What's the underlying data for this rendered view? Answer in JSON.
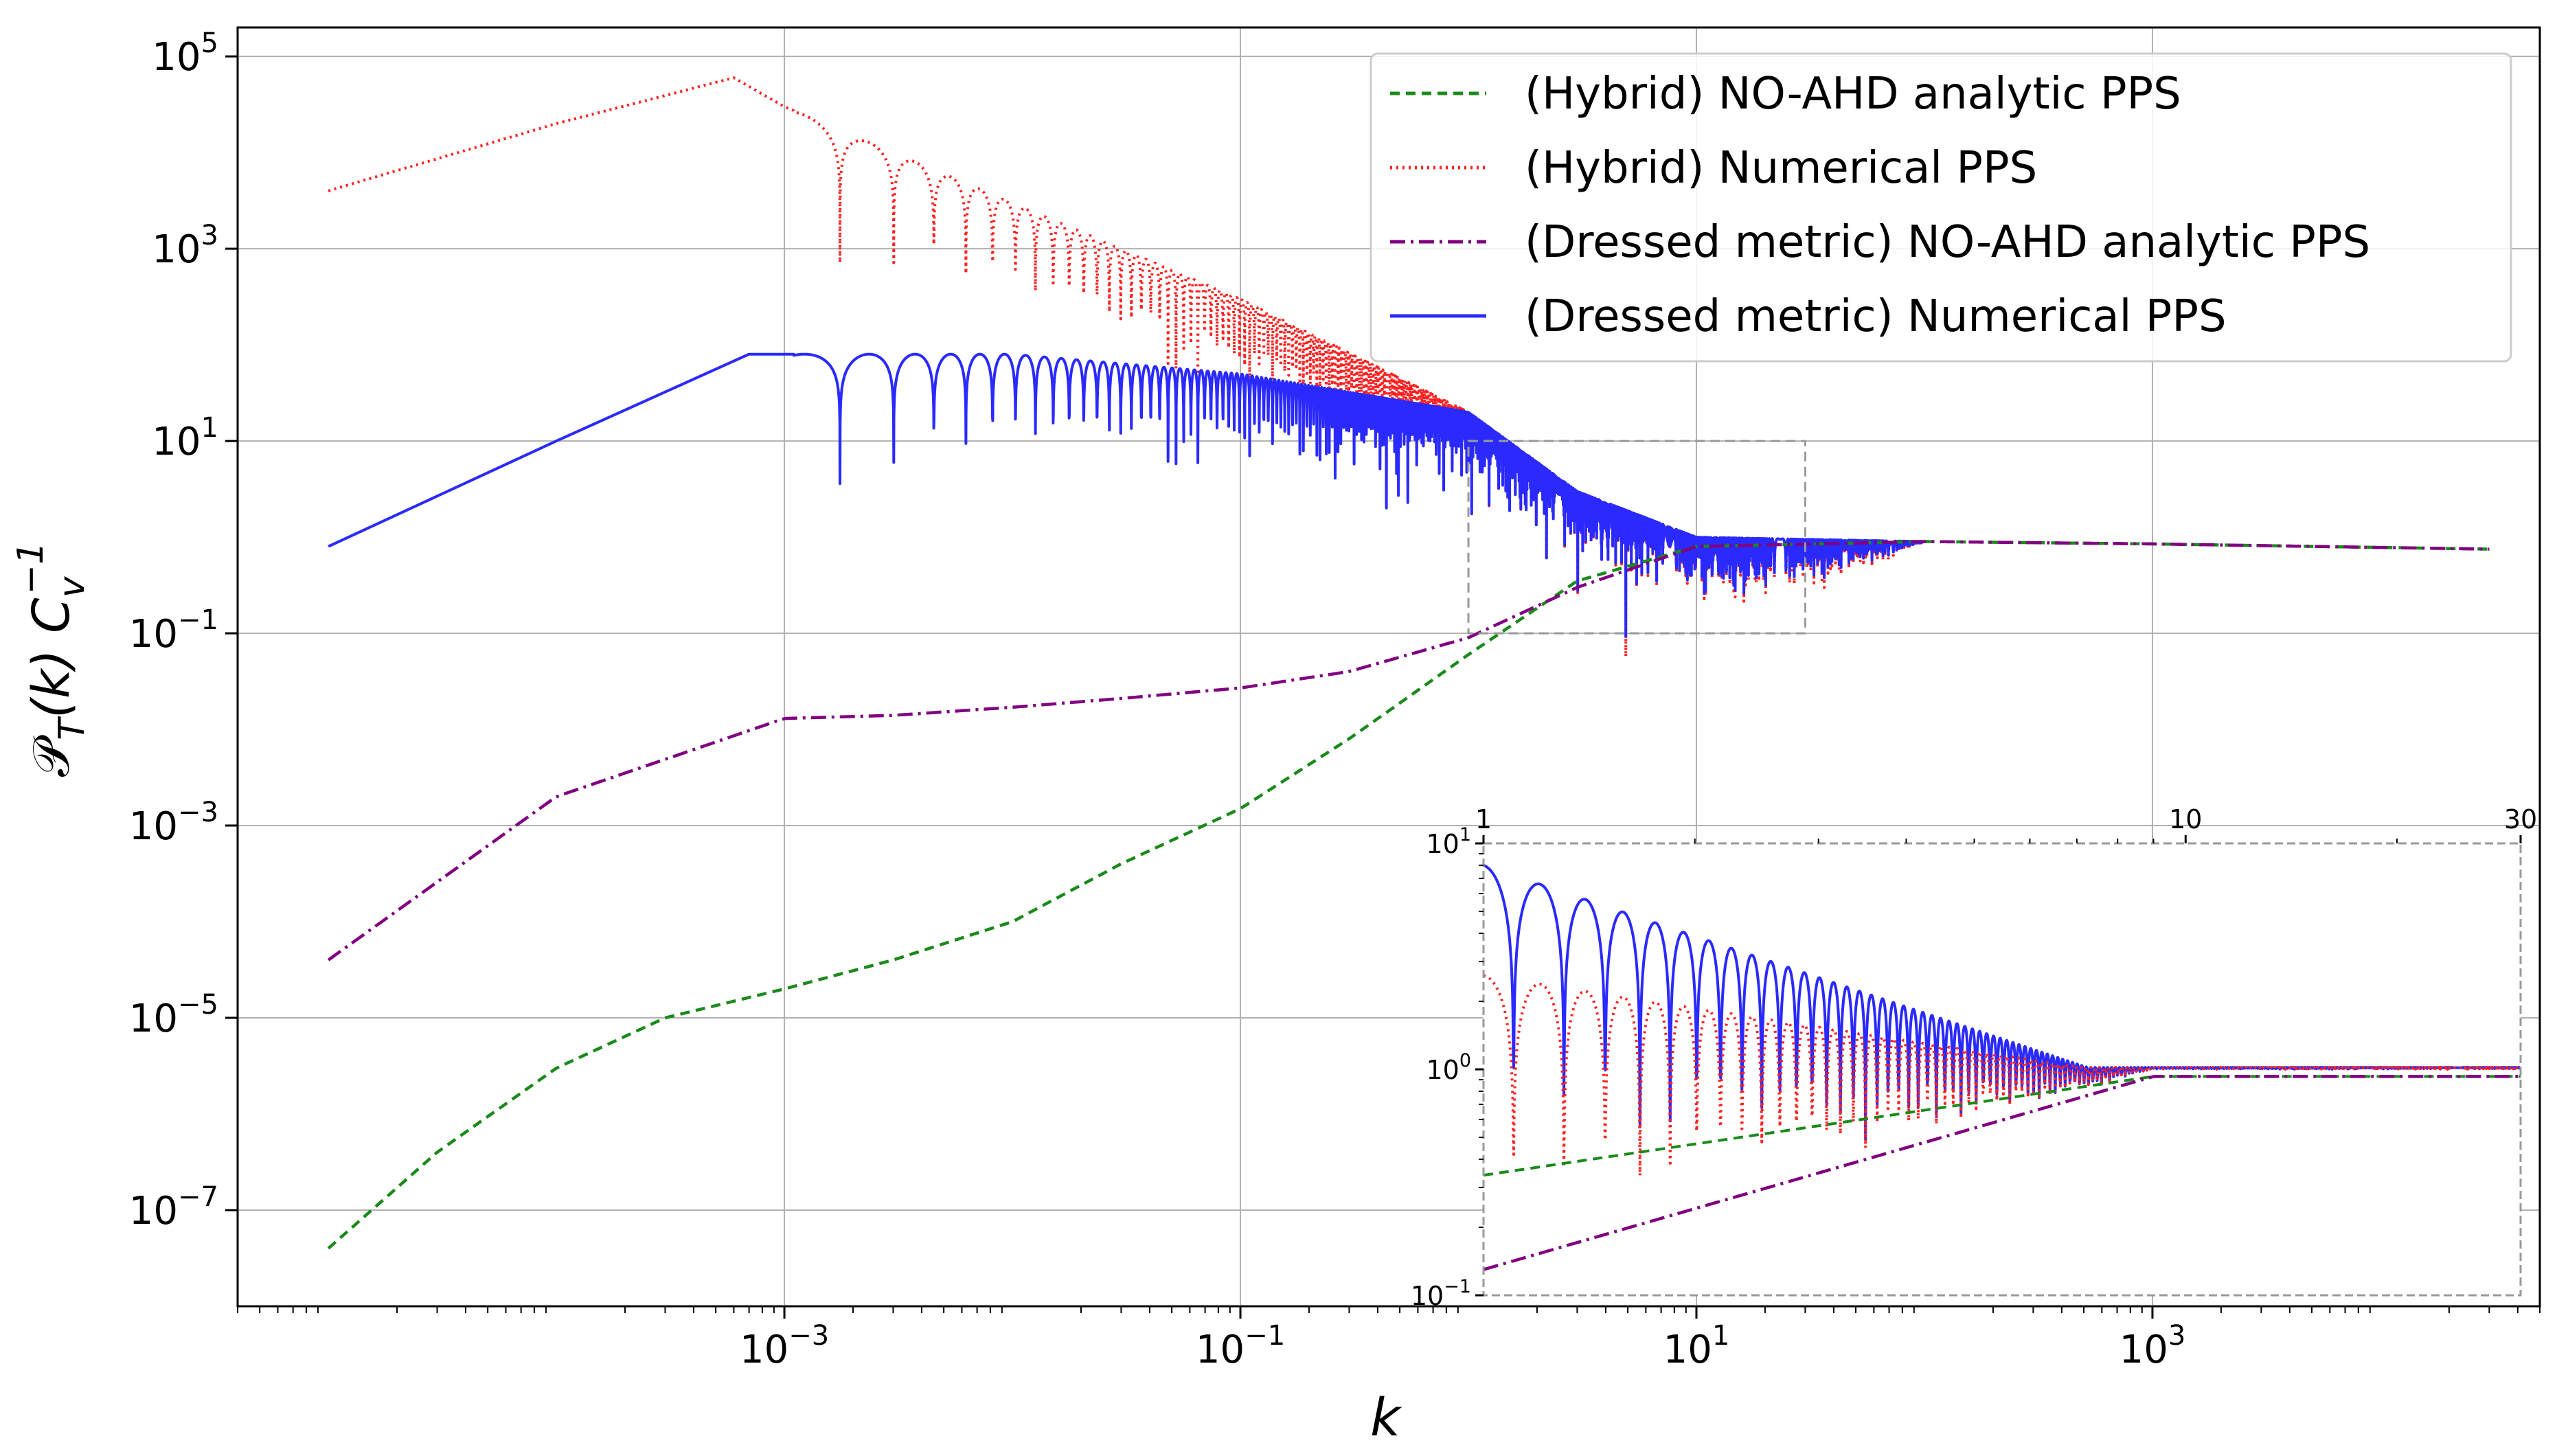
{
  "chart_data": {
    "type": "line",
    "xscale": "log",
    "yscale": "log",
    "xlabel": "k",
    "ylabel": "P_T(k)  C_v^-1",
    "xlim": [
      4e-06,
      50000
    ],
    "ylim": [
      1e-08,
      200000
    ],
    "grid": true,
    "legend_position": "top-right",
    "x_ticks": [
      {
        "value": 0.001,
        "mantissa": "10",
        "exp": "−3"
      },
      {
        "value": 0.1,
        "mantissa": "10",
        "exp": "−1"
      },
      {
        "value": 10,
        "mantissa": "10",
        "exp": "1"
      },
      {
        "value": 1000,
        "mantissa": "10",
        "exp": "3"
      }
    ],
    "y_ticks": [
      {
        "value": 1e-07,
        "mantissa": "10",
        "exp": "−7"
      },
      {
        "value": 1e-05,
        "mantissa": "10",
        "exp": "−5"
      },
      {
        "value": 0.001,
        "mantissa": "10",
        "exp": "−3"
      },
      {
        "value": 0.1,
        "mantissa": "10",
        "exp": "−1"
      },
      {
        "value": 10,
        "mantissa": "10",
        "exp": "1"
      },
      {
        "value": 1000,
        "mantissa": "10",
        "exp": "3"
      },
      {
        "value": 100000,
        "mantissa": "10",
        "exp": "5"
      }
    ],
    "series": [
      {
        "name": "(Hybrid) NO-AHD analytic PPS",
        "color": "#1a8a1a",
        "style": "dashed",
        "x": [
          1e-05,
          3e-05,
          0.0001,
          0.0003,
          0.001,
          0.003,
          0.01,
          0.03,
          0.1,
          0.3,
          1,
          3,
          10,
          100,
          1000,
          30000
        ],
        "y": [
          4e-08,
          4e-07,
          3e-06,
          1e-05,
          2e-05,
          4e-05,
          0.0001,
          0.0004,
          0.0015,
          0.008,
          0.06,
          0.35,
          0.8,
          0.9,
          0.85,
          0.75
        ]
      },
      {
        "name": "(Hybrid) Numerical PPS",
        "color": "#ff2020",
        "style": "dotted",
        "x": [
          1e-05,
          0.0001,
          0.0006,
          0.001,
          0.01,
          0.1,
          1,
          3,
          10,
          100
        ],
        "y": [
          4000,
          20000,
          60000,
          30000,
          3000,
          300,
          20,
          3,
          1,
          0.9
        ]
      },
      {
        "name": "(Dressed metric) NO-AHD analytic PPS",
        "color": "#800080",
        "style": "dashdot",
        "x": [
          1e-05,
          0.0001,
          0.001,
          0.003,
          0.01,
          0.03,
          0.1,
          0.3,
          1,
          3,
          10,
          100,
          1000,
          30000
        ],
        "y": [
          4e-05,
          0.002,
          0.013,
          0.014,
          0.017,
          0.021,
          0.027,
          0.04,
          0.09,
          0.3,
          0.8,
          0.9,
          0.85,
          0.75
        ]
      },
      {
        "name": "(Dressed metric) Numerical PPS",
        "color": "#2a2aff",
        "style": "solid",
        "x": [
          1e-05,
          0.0001,
          0.0007,
          0.001,
          0.01,
          0.1,
          1,
          3,
          10,
          100
        ],
        "y": [
          0.8,
          10,
          80,
          80,
          80,
          50,
          20,
          3,
          1,
          0.9
        ]
      }
    ],
    "inset": {
      "xscale": "log",
      "yscale": "log",
      "xlim": [
        1,
        30
      ],
      "ylim": [
        0.1,
        10
      ],
      "x_ticks": [
        {
          "value": 1,
          "label": "1"
        },
        {
          "value": 10,
          "label": "10"
        },
        {
          "value": 30,
          "label": "30"
        }
      ],
      "y_ticks": [
        {
          "value": 0.1,
          "mantissa": "10",
          "exp": "−1"
        },
        {
          "value": 1,
          "mantissa": "10",
          "exp": "0"
        },
        {
          "value": 10,
          "mantissa": "10",
          "exp": "1"
        }
      ]
    }
  }
}
